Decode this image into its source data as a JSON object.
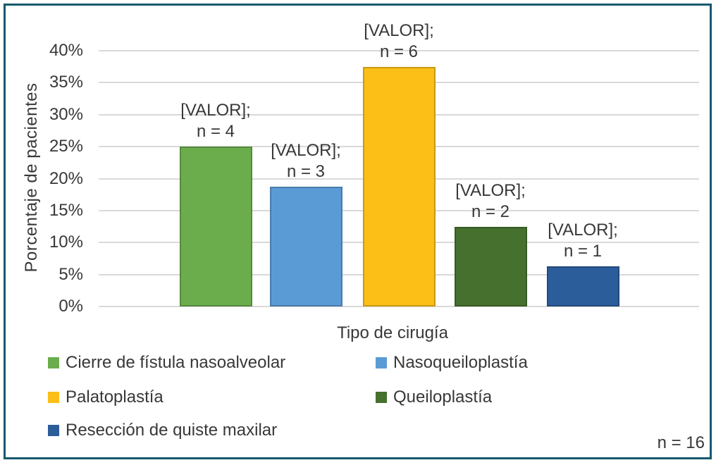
{
  "figure": {
    "frame_color": "#15596E",
    "background": "#FFFFFF",
    "footnote": "n = 16"
  },
  "y_axis": {
    "title": "Porcentaje de pacientes",
    "ticks": [
      "40%",
      "35%",
      "30%",
      "25%",
      "20%",
      "15%",
      "10%",
      "5%",
      "0%"
    ]
  },
  "x_axis": {
    "title": "Tipo de cirugía"
  },
  "legend": {
    "items": [
      {
        "label": "Cierre de fístula nasoalveolar",
        "color": "#6BAD4C"
      },
      {
        "label": "Nasoqueiloplastía",
        "color": "#5B9BD5"
      },
      {
        "label": "Palatoplastía",
        "color": "#FCBF17"
      },
      {
        "label": "Queiloplastía",
        "color": "#46702E"
      },
      {
        "label": "Resección de quiste maxilar",
        "color": "#2C5D9B"
      }
    ]
  },
  "chart_data": {
    "type": "bar",
    "title": "",
    "xlabel": "Tipo de cirugía",
    "ylabel": "Porcentaje de pacientes",
    "ylim": [
      0,
      40
    ],
    "y_tick_step": 5,
    "y_tick_format": "percent",
    "grid": true,
    "legend_position": "bottom",
    "categories": [
      "Cierre de fístula nasoalveolar",
      "Nasoqueiloplastía",
      "Palatoplastía",
      "Queiloplastía",
      "Resección de quiste maxilar"
    ],
    "values": [
      25,
      18.75,
      37.5,
      12.5,
      6.25
    ],
    "counts": [
      4,
      3,
      6,
      2,
      1
    ],
    "bar_labels": [
      [
        "[VALOR];",
        "n = 4"
      ],
      [
        "[VALOR];",
        "n = 3"
      ],
      [
        "[VALOR];",
        "n = 6"
      ],
      [
        "[VALOR];",
        "n = 2"
      ],
      [
        "[VALOR];",
        "n = 1"
      ]
    ],
    "colors": [
      "#6BAD4C",
      "#5B9BD5",
      "#FCBF17",
      "#46702E",
      "#2C5D9B"
    ],
    "total_n": 16,
    "total_label": "n = 16"
  }
}
